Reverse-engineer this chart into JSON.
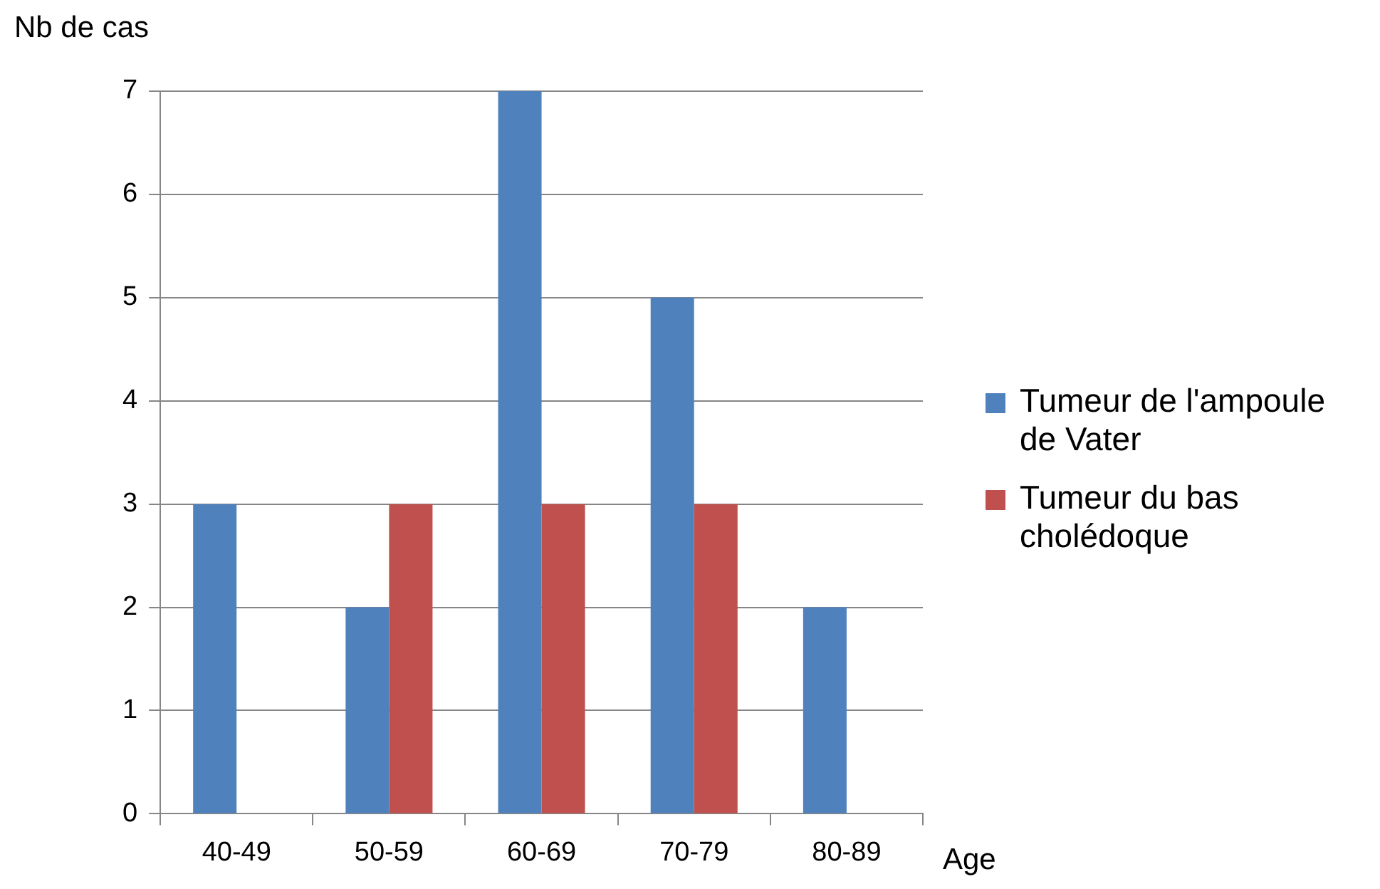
{
  "chart_data": {
    "type": "bar",
    "xlabel": "Age",
    "ylabel": "Nb de cas",
    "categories": [
      "40-49",
      "50-59",
      "60-69",
      "70-79",
      "80-89"
    ],
    "series": [
      {
        "name": "Tumeur de l'ampoule de Vater",
        "color": "#4f81bd",
        "values": [
          3,
          2,
          7,
          5,
          2
        ]
      },
      {
        "name": "Tumeur du bas cholédoque",
        "color": "#c0504d",
        "values": [
          0,
          3,
          3,
          3,
          0
        ]
      }
    ],
    "ylim": [
      0,
      7
    ],
    "yticks": [
      0,
      1,
      2,
      3,
      4,
      5,
      6,
      7
    ],
    "grid": "y",
    "legend": "right"
  }
}
